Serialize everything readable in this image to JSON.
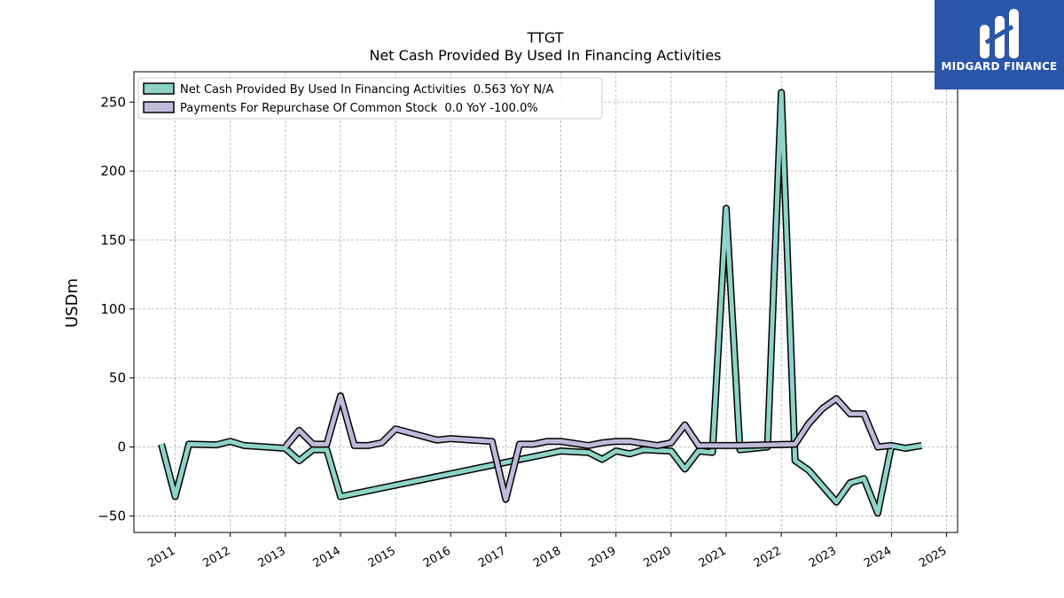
{
  "brand": {
    "name": "MIDGARD FINANCE",
    "bg_color": "#2b55a8"
  },
  "chart_data": {
    "type": "line",
    "title": "TTGT",
    "subtitle": "Net Cash Provided By Used In Financing Activities",
    "ylabel": "USDm",
    "xlabel": "",
    "xlim": [
      2010.25,
      2025.2
    ],
    "ylim": [
      -62,
      272
    ],
    "x_ticks": [
      "2011",
      "2012",
      "2013",
      "2014",
      "2015",
      "2016",
      "2017",
      "2018",
      "2019",
      "2020",
      "2021",
      "2022",
      "2023",
      "2024",
      "2025"
    ],
    "y_ticks": [
      -50,
      0,
      50,
      100,
      150,
      200,
      250
    ],
    "grid": true,
    "legend_position": "top-left",
    "series": [
      {
        "name": "Net Cash Provided By Used In Financing Activities",
        "legend_label": "Net Cash Provided By Used In Financing Activities  0.563 YoY N/A",
        "color": "#8dd3c7",
        "points": [
          [
            2010.75,
            2
          ],
          [
            2011.0,
            -36
          ],
          [
            2011.25,
            2
          ],
          [
            2011.75,
            1.5
          ],
          [
            2012.0,
            4
          ],
          [
            2012.25,
            1
          ],
          [
            2013.0,
            -1
          ],
          [
            2013.25,
            -10
          ],
          [
            2013.5,
            -2
          ],
          [
            2013.75,
            -2
          ],
          [
            2014.0,
            -36
          ],
          [
            2016.9,
            -12
          ],
          [
            2017.75,
            -5
          ],
          [
            2018.0,
            -3
          ],
          [
            2018.5,
            -4
          ],
          [
            2018.75,
            -9
          ],
          [
            2019.0,
            -3
          ],
          [
            2019.25,
            -5
          ],
          [
            2019.5,
            -2
          ],
          [
            2020.0,
            -3
          ],
          [
            2020.25,
            -16
          ],
          [
            2020.5,
            -3
          ],
          [
            2020.75,
            -4
          ],
          [
            2021.0,
            173
          ],
          [
            2021.25,
            -2
          ],
          [
            2021.75,
            0
          ],
          [
            2022.0,
            257
          ],
          [
            2022.25,
            -10
          ],
          [
            2022.5,
            -17
          ],
          [
            2023.0,
            -40
          ],
          [
            2023.25,
            -26
          ],
          [
            2023.5,
            -23
          ],
          [
            2023.75,
            -48
          ],
          [
            2024.0,
            1
          ],
          [
            2024.25,
            -1
          ],
          [
            2024.55,
            1
          ]
        ]
      },
      {
        "name": "Payments For Repurchase Of Common Stock",
        "legend_label": "Payments For Repurchase Of Common Stock  0.0 YoY -100.0%",
        "color": "#bebada",
        "points": [
          [
            2013.0,
            0
          ],
          [
            2013.25,
            12
          ],
          [
            2013.5,
            2
          ],
          [
            2013.75,
            2
          ],
          [
            2014.0,
            37
          ],
          [
            2014.25,
            1
          ],
          [
            2014.5,
            1
          ],
          [
            2014.75,
            3
          ],
          [
            2015.0,
            13
          ],
          [
            2015.75,
            5
          ],
          [
            2016.0,
            6
          ],
          [
            2016.75,
            4
          ],
          [
            2017.0,
            -38
          ],
          [
            2017.25,
            2
          ],
          [
            2017.5,
            2
          ],
          [
            2017.75,
            4
          ],
          [
            2018.0,
            4
          ],
          [
            2018.5,
            1
          ],
          [
            2018.75,
            3
          ],
          [
            2019.0,
            4
          ],
          [
            2019.25,
            4
          ],
          [
            2019.75,
            1
          ],
          [
            2020.0,
            3
          ],
          [
            2020.25,
            16
          ],
          [
            2020.5,
            1
          ],
          [
            2021.25,
            1
          ],
          [
            2022.25,
            2
          ],
          [
            2022.5,
            17
          ],
          [
            2022.75,
            28
          ],
          [
            2023.0,
            35
          ],
          [
            2023.25,
            24
          ],
          [
            2023.5,
            24
          ],
          [
            2023.75,
            0
          ],
          [
            2024.0,
            1
          ]
        ]
      }
    ]
  }
}
